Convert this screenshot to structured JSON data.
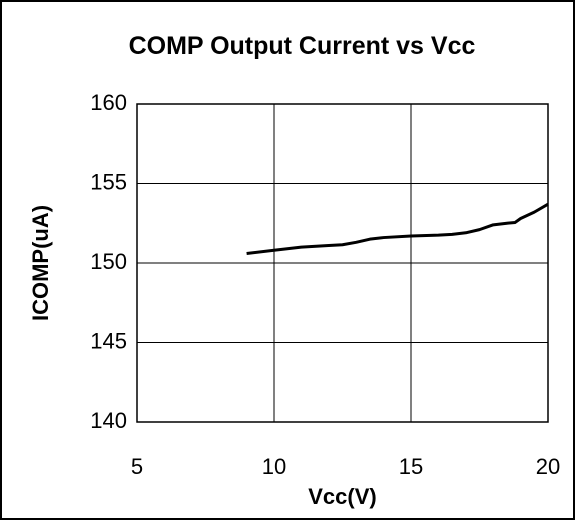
{
  "chart_data": {
    "type": "line",
    "title": "COMP Output Current vs Vcc",
    "x_label": "Vcc(V)",
    "y_label": "ICOMP(uA)",
    "x": [
      9,
      10,
      11,
      12,
      12.5,
      13,
      13.5,
      14,
      15,
      16,
      16.5,
      17,
      17.5,
      18,
      18.5,
      18.8,
      19,
      19.5,
      20
    ],
    "series": [
      {
        "name": "ICOMP",
        "color": "#000000",
        "values": [
          150.6,
          150.8,
          151.0,
          151.1,
          151.15,
          151.3,
          151.5,
          151.6,
          151.7,
          151.75,
          151.8,
          151.9,
          152.1,
          152.4,
          152.5,
          152.55,
          152.8,
          153.2,
          153.7
        ]
      }
    ],
    "xlim": [
      5,
      20
    ],
    "xticks": [
      5,
      10,
      15,
      20
    ],
    "ylim": [
      140,
      160
    ],
    "yticks": [
      140,
      145,
      150,
      155,
      160
    ],
    "grid": true
  }
}
